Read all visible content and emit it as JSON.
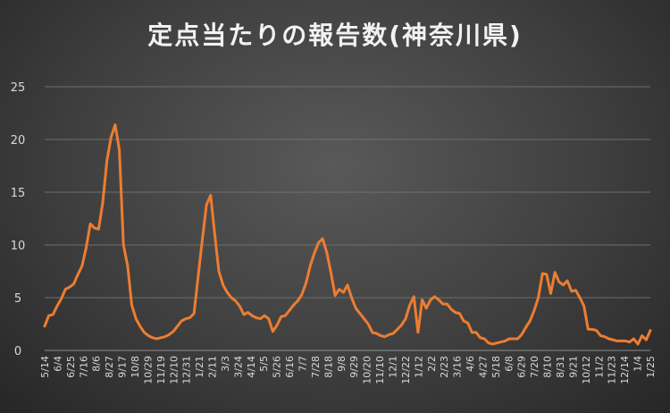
{
  "chart_data": {
    "type": "line",
    "title": "定点当たりの報告数(神奈川県)",
    "xlabel": "",
    "ylabel": "",
    "ylim": [
      0,
      25
    ],
    "yticks": [
      0,
      5,
      10,
      15,
      20,
      25
    ],
    "grid": true,
    "legend": "none",
    "line_color": "#ed7d31",
    "x_tick_labels": [
      "5/14",
      "6/4",
      "6/25",
      "7/16",
      "8/6",
      "8/27",
      "9/17",
      "10/8",
      "10/29",
      "11/19",
      "12/10",
      "12/31",
      "1/21",
      "2/11",
      "3/3",
      "3/24",
      "4/14",
      "5/5",
      "5/26",
      "6/16",
      "7/7",
      "7/28",
      "8/18",
      "9/8",
      "9/29",
      "10/20",
      "11/10",
      "12/1",
      "12/22",
      "1/12",
      "2/2",
      "2/23",
      "3/16",
      "4/6",
      "4/27",
      "5/18",
      "6/8",
      "6/29",
      "7/20",
      "8/10",
      "8/31",
      "9/21",
      "10/12",
      "11/2",
      "11/23",
      "12/14",
      "1/4",
      "1/25"
    ],
    "values": [
      2.3,
      3.3,
      3.4,
      4.2,
      4.9,
      5.8,
      6.0,
      6.3,
      7.2,
      8.0,
      9.7,
      12.0,
      11.6,
      11.5,
      14.0,
      18.0,
      20.2,
      21.4,
      19.0,
      10.0,
      8.0,
      4.3,
      3.0,
      2.3,
      1.7,
      1.4,
      1.2,
      1.1,
      1.2,
      1.3,
      1.5,
      1.8,
      2.3,
      2.8,
      3.0,
      3.1,
      3.5,
      7.0,
      10.5,
      13.8,
      14.7,
      11.0,
      7.5,
      6.2,
      5.5,
      5.0,
      4.7,
      4.2,
      3.4,
      3.6,
      3.3,
      3.1,
      3.0,
      3.3,
      3.0,
      1.8,
      2.4,
      3.2,
      3.3,
      3.8,
      4.3,
      4.7,
      5.3,
      6.4,
      8.0,
      9.2,
      10.2,
      10.6,
      9.3,
      7.4,
      5.2,
      5.8,
      5.5,
      6.2,
      5.0,
      4.0,
      3.5,
      3.0,
      2.5,
      1.7,
      1.6,
      1.4,
      1.3,
      1.5,
      1.6,
      2.0,
      2.4,
      3.0,
      4.3,
      5.1,
      1.7,
      4.8,
      4.0,
      4.8,
      5.1,
      4.8,
      4.4,
      4.4,
      3.9,
      3.6,
      3.5,
      2.8,
      2.6,
      1.7,
      1.7,
      1.2,
      1.1,
      0.7,
      0.6,
      0.7,
      0.8,
      0.9,
      1.1,
      1.1,
      1.1,
      1.5,
      2.2,
      2.8,
      3.8,
      5.0,
      7.3,
      7.2,
      5.4,
      7.4,
      6.5,
      6.2,
      6.6,
      5.6,
      5.7,
      5.0,
      4.2,
      2.0,
      2.0,
      1.9,
      1.4,
      1.3,
      1.1,
      1.0,
      0.9,
      0.9,
      0.9,
      0.8,
      1.1,
      0.6,
      1.4,
      1.0,
      1.9
    ]
  }
}
